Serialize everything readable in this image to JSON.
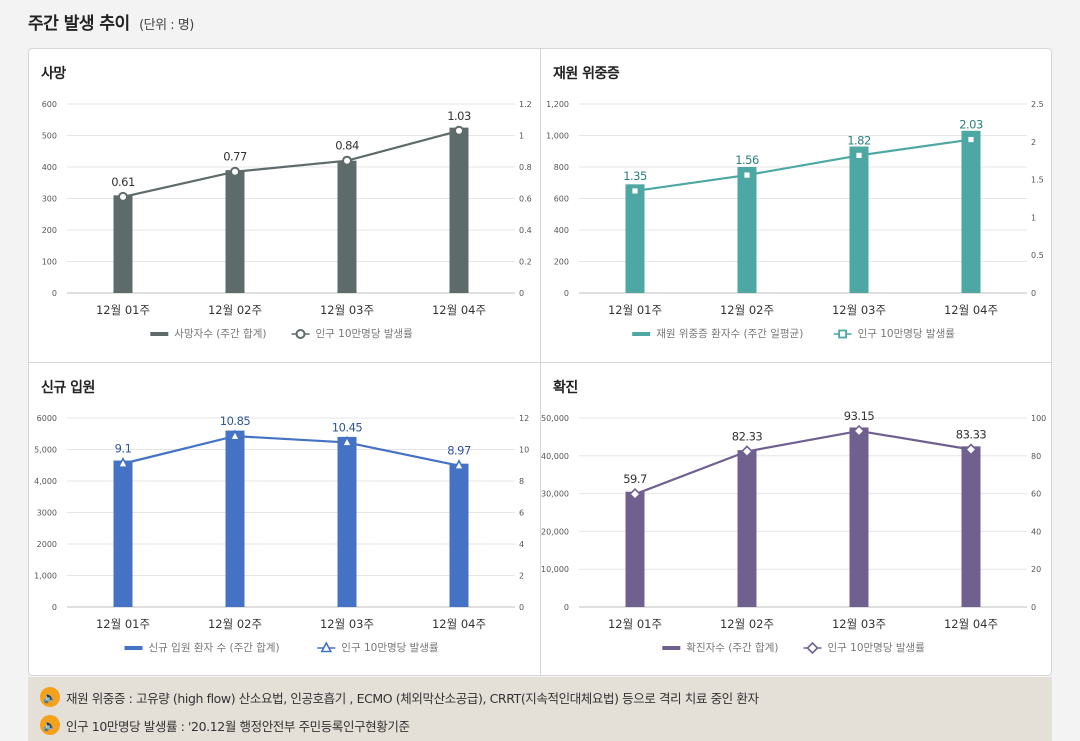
{
  "header": {
    "title": "주간 발생 추이",
    "unit": "(단위 : 명)"
  },
  "chart_data": [
    {
      "id": "deaths",
      "type": "bar-line",
      "title": "사망",
      "categories": [
        "12월 01주",
        "12월 02주",
        "12월 03주",
        "12월 04주"
      ],
      "bar_series": {
        "name": "사망자수 (주간 합계)",
        "values": [
          310,
          390,
          420,
          525
        ],
        "color": "#5f6b6b"
      },
      "line_series": {
        "name": "인구 10만명당 발생률",
        "values": [
          0.61,
          0.77,
          0.84,
          1.03
        ],
        "labels": [
          "0.61",
          "0.77",
          "0.84",
          "1.03"
        ],
        "color": "#5f6b6b",
        "marker": "circle"
      },
      "ylim_left": [
        0,
        600
      ],
      "yticks_left": [
        "0",
        "100",
        "200",
        "300",
        "400",
        "500",
        "600"
      ],
      "ylim_right": [
        0,
        1.2
      ],
      "yticks_right": [
        "0",
        "0.2",
        "0.4",
        "0.6",
        "0.8",
        "1",
        "1.2"
      ],
      "label_color": "#333333"
    },
    {
      "id": "severe",
      "type": "bar-line",
      "title": "재원 위중증",
      "categories": [
        "12월 01주",
        "12월 02주",
        "12월 03주",
        "12월 04주"
      ],
      "bar_series": {
        "name": "재원 위중증 환자수 (주간 일평균)",
        "values": [
          690,
          800,
          930,
          1030
        ],
        "color": "#4da7a3"
      },
      "line_series": {
        "name": "인구 10만명당 발생률",
        "values": [
          1.35,
          1.56,
          1.82,
          2.03
        ],
        "labels": [
          "1.35",
          "1.56",
          "1.82",
          "2.03"
        ],
        "color": "#4da7a3",
        "marker": "square"
      },
      "ylim_left": [
        0,
        1200
      ],
      "yticks_left": [
        "0",
        "200",
        "400",
        "600",
        "800",
        "1,000",
        "1,200"
      ],
      "ylim_right": [
        0,
        2.5
      ],
      "yticks_right": [
        "0",
        "0.5",
        "1",
        "1.5",
        "2",
        "2.5"
      ],
      "label_color": "#2a7f7b"
    },
    {
      "id": "admission",
      "type": "bar-line",
      "title": "신규 입원",
      "categories": [
        "12월 01주",
        "12월 02주",
        "12월 03주",
        "12월 04주"
      ],
      "bar_series": {
        "name": "신규 입원 환자 수 (주간 합계)",
        "values": [
          4650,
          5600,
          5400,
          4550
        ],
        "color": "#4472c4"
      },
      "line_series": {
        "name": "인구 10만명당 발생률",
        "values": [
          9.1,
          10.85,
          10.45,
          8.97
        ],
        "labels": [
          "9.1",
          "10.85",
          "10.45",
          "8.97"
        ],
        "color": "#4472c4",
        "marker": "triangle"
      },
      "ylim_left": [
        0,
        6000
      ],
      "yticks_left": [
        "0",
        "1,000",
        "2000",
        "3000",
        "4,000",
        "5,000",
        "6000"
      ],
      "ylim_right": [
        0,
        12
      ],
      "yticks_right": [
        "0",
        "2",
        "4",
        "6",
        "8",
        "10",
        "12"
      ],
      "label_color": "#2f5597"
    },
    {
      "id": "confirmed",
      "type": "bar-line",
      "title": "확진",
      "categories": [
        "12월 01주",
        "12월 02주",
        "12월 03주",
        "12월 04주"
      ],
      "bar_series": {
        "name": "확진자수 (주간 합계)",
        "values": [
          30500,
          41500,
          47500,
          42500
        ],
        "color": "#70608f"
      },
      "line_series": {
        "name": "인구 10만명당 발생률",
        "values": [
          59.7,
          82.33,
          93.15,
          83.33
        ],
        "labels": [
          "59.7",
          "82.33",
          "93.15",
          "83.33"
        ],
        "color": "#70608f",
        "marker": "diamond"
      },
      "ylim_left": [
        0,
        50000
      ],
      "yticks_left": [
        "0",
        "10,000",
        "20,000",
        "30,000",
        "40,000",
        "50,000"
      ],
      "ylim_right": [
        0,
        100
      ],
      "yticks_right": [
        "0",
        "20",
        "40",
        "60",
        "80",
        "100"
      ],
      "label_color": "#333333"
    }
  ],
  "notes": [
    {
      "icon": "speaker-icon",
      "text": "재원 위중증 : 고유량 (high flow) 산소요법, 인공호흡기 , ECMO (체외막산소공급), CRRT(지속적인대체요법) 등으로 격리 치료 중인 환자"
    },
    {
      "icon": "speaker-icon",
      "text": "인구 10만명당 발생률 : '20.12월 행정안전부 주민등록인구현황기준"
    }
  ]
}
